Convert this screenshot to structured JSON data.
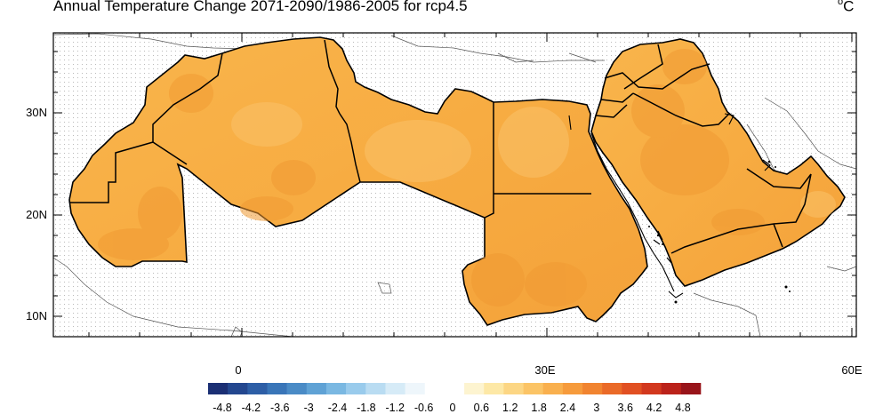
{
  "title": "Annual Temperature Change 2071-2090/1986-2005 for rcp4.5",
  "units": {
    "base": "C",
    "superscript": "o"
  },
  "axes": {
    "lat_labels": [
      "30N",
      "20N",
      "10N"
    ],
    "lon_labels": [
      "0",
      "30E",
      "60E"
    ]
  },
  "map": {
    "region": "Arab region (North Africa and Arabian Peninsula)",
    "lon_range": [
      -18.5,
      60.5
    ],
    "lat_range": [
      7.5,
      38.5
    ],
    "fill_color_main": "#f7b046",
    "fill_color_dark": "#f09a33",
    "fill_color_light": "#fac066"
  },
  "colorbar": {
    "labels": [
      "-4.8",
      "-4.2",
      "-3.6",
      "-3",
      "-2.4",
      "-1.8",
      "-1.2",
      "-0.6",
      "0",
      "0.6",
      "1.2",
      "1.8",
      "2.4",
      "3",
      "3.6",
      "4.2",
      "4.8"
    ],
    "colors": [
      "#1b2f74",
      "#23478f",
      "#2d5ea6",
      "#3975b8",
      "#4a8bc6",
      "#5fa2d5",
      "#7ab8e2",
      "#99cbec",
      "#b9dcf2",
      "#d6ebf7",
      "#eef6fb",
      "#ffffff",
      "#ffffff",
      "#fdf4d0",
      "#fde8a6",
      "#fcd684",
      "#fbc466",
      "#f9b04e",
      "#f69b3c",
      "#f18430",
      "#ea6a28",
      "#e15022",
      "#d2381e",
      "#bb221a",
      "#98141a"
    ]
  }
}
